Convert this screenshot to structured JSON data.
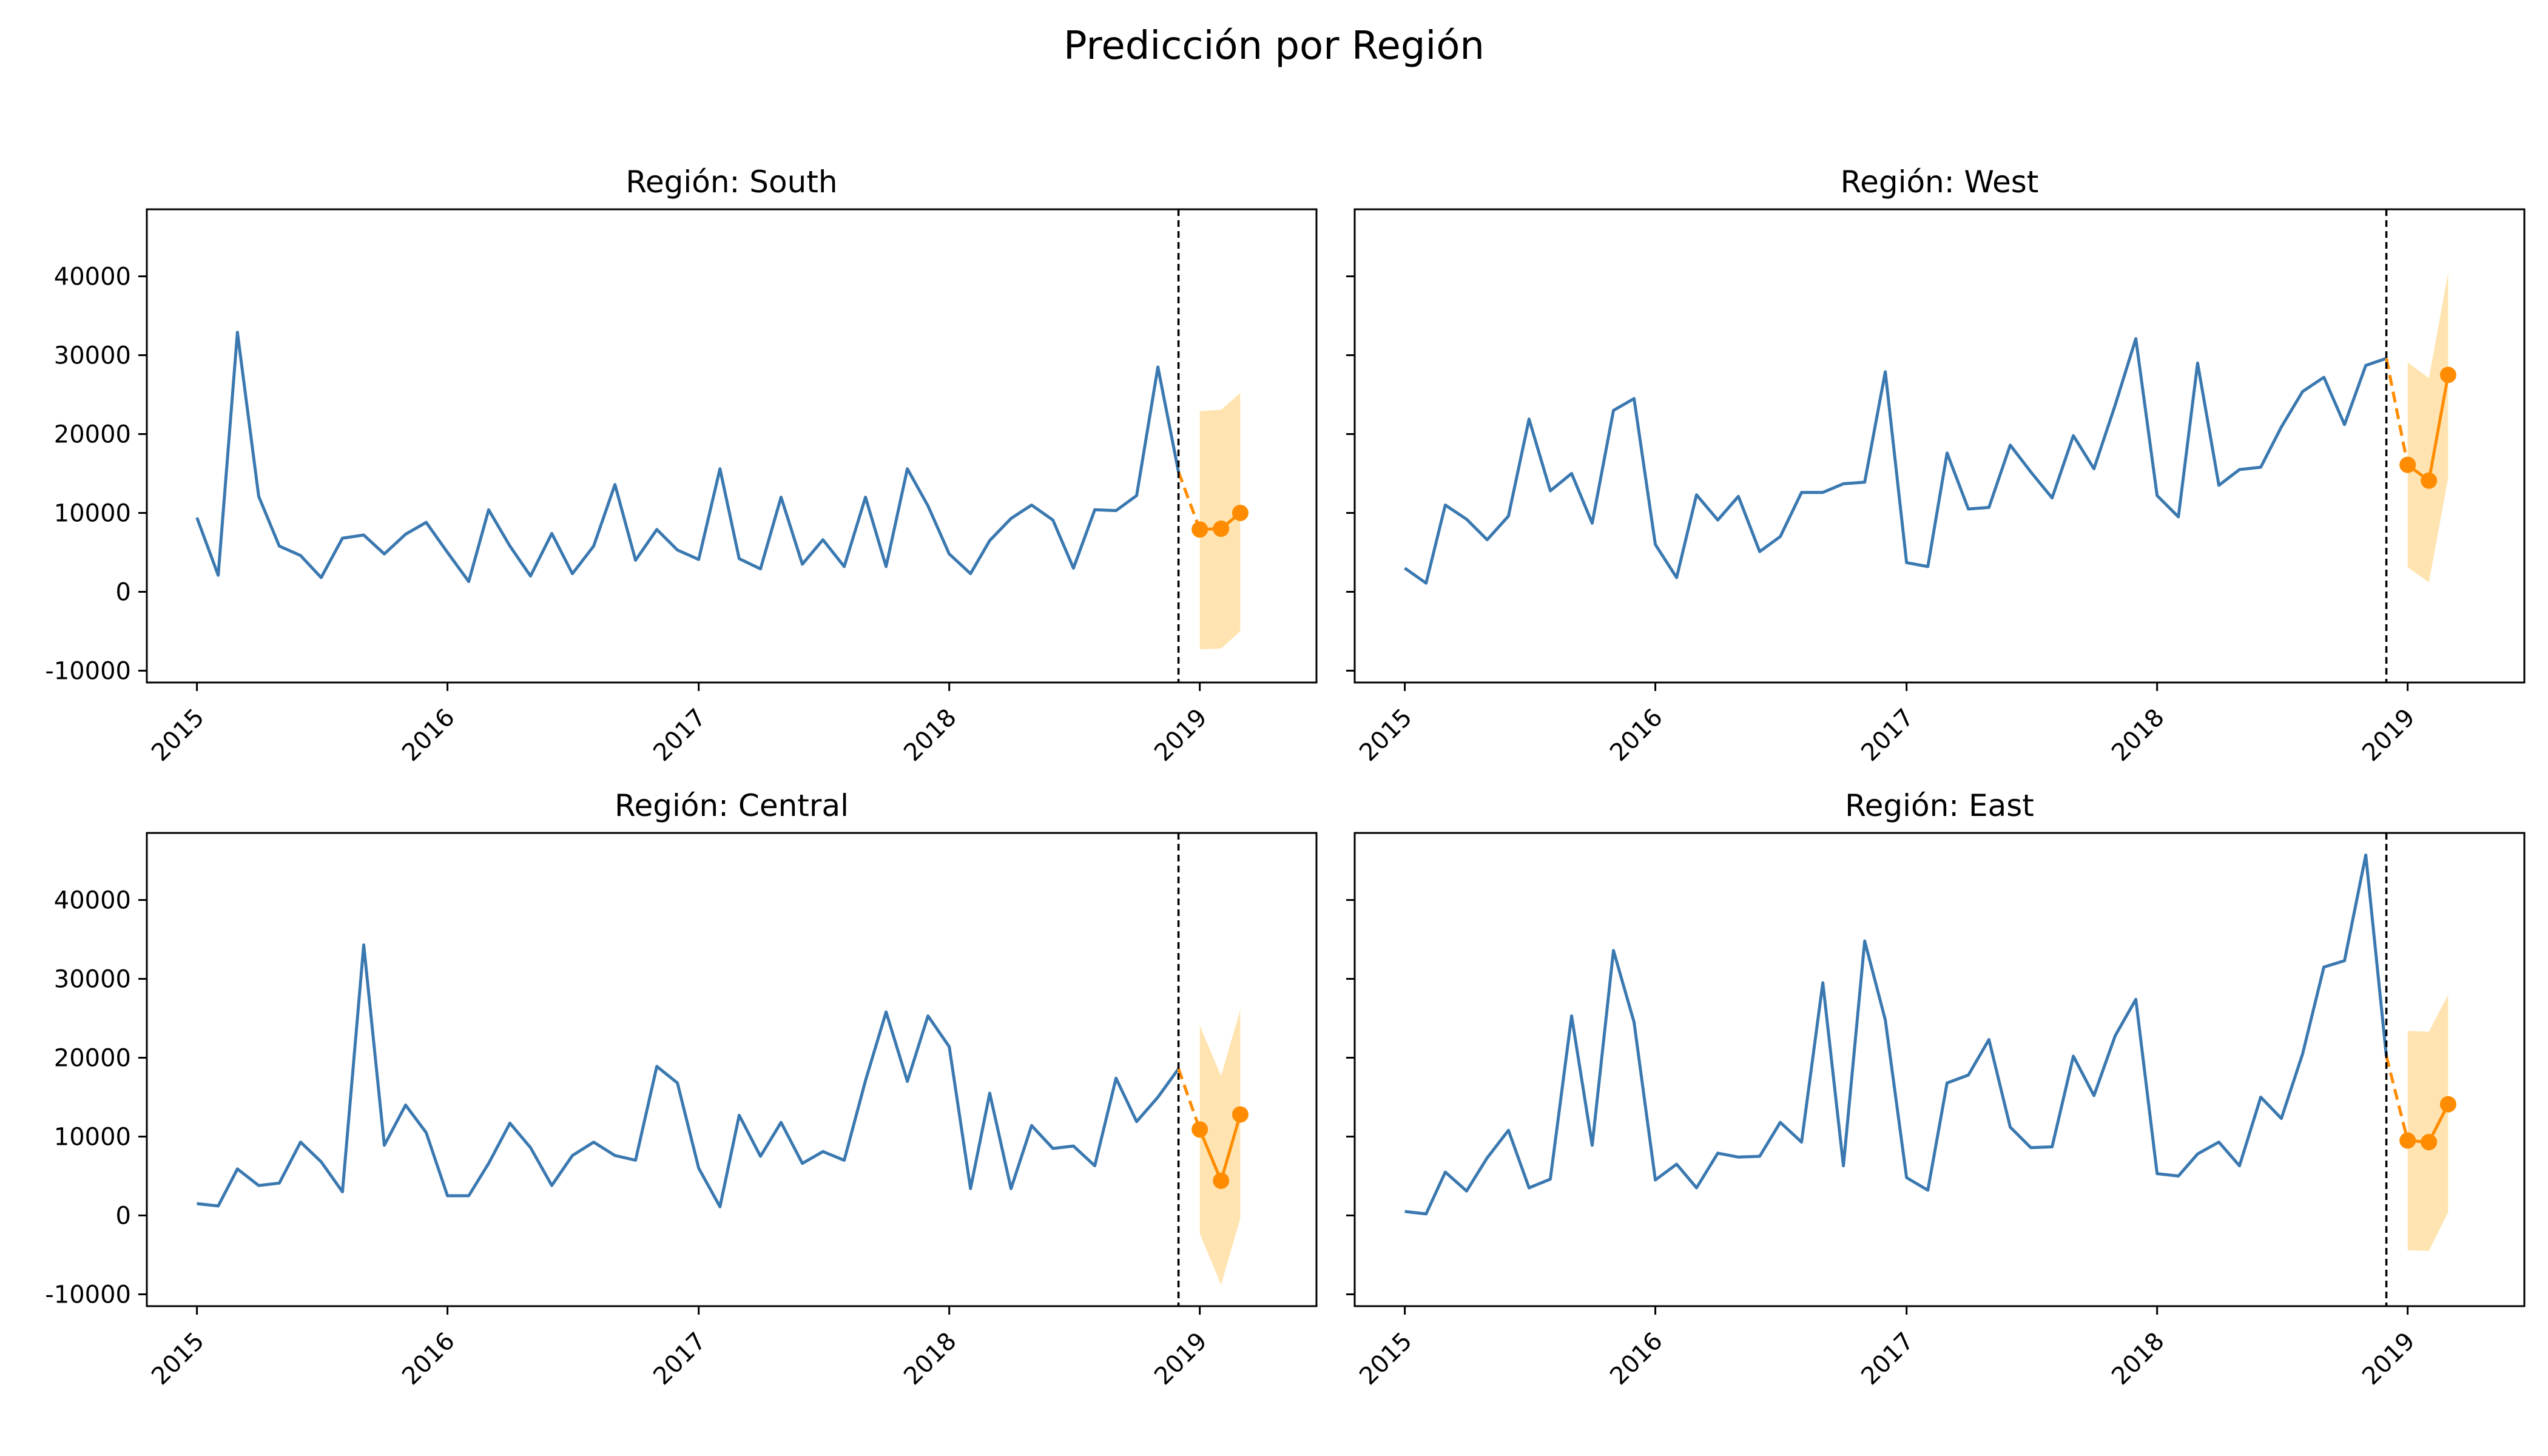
{
  "figure": {
    "suptitle": "Predicción por Región"
  },
  "chart_data": [
    {
      "type": "line",
      "title": "Región: South",
      "x_ticks": [
        "2015",
        "2016",
        "2017",
        "2018",
        "2019"
      ],
      "y_ticks": [
        "-10000",
        "0",
        "10000",
        "20000",
        "30000",
        "40000"
      ],
      "xlim": [
        "2014-10-20",
        "2019-06-20"
      ],
      "ylim": [
        -11500,
        48500
      ],
      "show_y_tick_labels": true,
      "cutoff_date": "2018-12-01",
      "history": {
        "start": "2015-01",
        "values": [
          9400,
          2100,
          32900,
          12100,
          5800,
          4600,
          1800,
          6800,
          7200,
          4800,
          7300,
          8800,
          5000,
          1300,
          10400,
          5800,
          2000,
          7400,
          2300,
          5800,
          13600,
          4000,
          7900,
          5300,
          4100,
          15600,
          4200,
          2900,
          12000,
          3500,
          6600,
          3200,
          12000,
          3200,
          15600,
          10900,
          4800,
          2300,
          6500,
          9300,
          11000,
          9100,
          3000,
          10400,
          10300,
          12200,
          28500,
          15200
        ]
      },
      "forecast": {
        "dates": [
          "2019-01",
          "2019-02",
          "2019-03"
        ],
        "values": [
          7900,
          8000,
          10000
        ],
        "lower": [
          -7300,
          -7200,
          -5000
        ],
        "upper": [
          22900,
          23100,
          25200
        ]
      }
    },
    {
      "type": "line",
      "title": "Región: West",
      "x_ticks": [
        "2015",
        "2016",
        "2017",
        "2018",
        "2019"
      ],
      "y_ticks": [
        "-10000",
        "0",
        "10000",
        "20000",
        "30000",
        "40000"
      ],
      "xlim": [
        "2014-10-20",
        "2019-06-20"
      ],
      "ylim": [
        -11500,
        48500
      ],
      "show_y_tick_labels": false,
      "cutoff_date": "2018-12-01",
      "history": {
        "start": "2015-01",
        "values": [
          3000,
          1100,
          11000,
          9200,
          6600,
          9600,
          21900,
          12800,
          15000,
          8700,
          23000,
          24500,
          6000,
          1800,
          12300,
          9100,
          12100,
          5100,
          7000,
          12600,
          12600,
          13700,
          13900,
          27900,
          3700,
          3200,
          17600,
          10500,
          10700,
          18600,
          15200,
          11900,
          19800,
          15600,
          23700,
          32100,
          12200,
          9500,
          29000,
          13500,
          15500,
          15800,
          20900,
          25400,
          27200,
          21200,
          28700,
          29600
        ]
      },
      "forecast": {
        "dates": [
          "2019-01",
          "2019-02",
          "2019-03"
        ],
        "values": [
          16100,
          14100,
          27500
        ],
        "lower": [
          3100,
          1200,
          14400
        ],
        "upper": [
          29100,
          27100,
          40500
        ]
      }
    },
    {
      "type": "line",
      "title": "Región: Central",
      "x_ticks": [
        "2015",
        "2016",
        "2017",
        "2018",
        "2019"
      ],
      "y_ticks": [
        "-10000",
        "0",
        "10000",
        "20000",
        "30000",
        "40000"
      ],
      "xlim": [
        "2014-10-20",
        "2019-06-20"
      ],
      "ylim": [
        -11500,
        48500
      ],
      "show_y_tick_labels": true,
      "cutoff_date": "2018-12-01",
      "history": {
        "start": "2015-01",
        "values": [
          1500,
          1200,
          5900,
          3800,
          4100,
          9300,
          6800,
          3000,
          34300,
          8900,
          14000,
          10500,
          2500,
          2500,
          6600,
          11700,
          8600,
          3800,
          7600,
          9300,
          7600,
          7000,
          18900,
          16800,
          6000,
          1100,
          12700,
          7500,
          11800,
          6600,
          8100,
          7000,
          17100,
          25800,
          17000,
          25300,
          21400,
          3400,
          15500,
          3400,
          11400,
          8500,
          8800,
          6300,
          17400,
          11900,
          15000,
          18600
        ]
      },
      "forecast": {
        "dates": [
          "2019-01",
          "2019-02",
          "2019-03"
        ],
        "values": [
          10900,
          4400,
          12800
        ],
        "lower": [
          -2300,
          -8800,
          -400
        ],
        "upper": [
          24100,
          17700,
          26100
        ]
      }
    },
    {
      "type": "line",
      "title": "Región: East",
      "x_ticks": [
        "2015",
        "2016",
        "2017",
        "2018",
        "2019"
      ],
      "y_ticks": [
        "-10000",
        "0",
        "10000",
        "20000",
        "30000",
        "40000"
      ],
      "xlim": [
        "2014-10-20",
        "2019-06-20"
      ],
      "ylim": [
        -11500,
        48500
      ],
      "show_y_tick_labels": false,
      "cutoff_date": "2018-12-01",
      "history": {
        "start": "2015-01",
        "values": [
          500,
          200,
          5500,
          3100,
          7300,
          10800,
          3500,
          4600,
          25300,
          8900,
          33600,
          24500,
          4500,
          6500,
          3500,
          7900,
          7400,
          7500,
          11800,
          9300,
          29500,
          6300,
          34800,
          24800,
          4800,
          3200,
          16800,
          17800,
          22300,
          11200,
          8600,
          8700,
          20200,
          15200,
          22800,
          27400,
          5300,
          5000,
          7800,
          9300,
          6300,
          15000,
          12300,
          20500,
          31500,
          32300,
          45700,
          20200
        ]
      },
      "forecast": {
        "dates": [
          "2019-01",
          "2019-02",
          "2019-03"
        ],
        "values": [
          9500,
          9300,
          14100
        ],
        "lower": [
          -4400,
          -4500,
          400
        ],
        "upper": [
          23400,
          23300,
          28000
        ]
      }
    }
  ]
}
